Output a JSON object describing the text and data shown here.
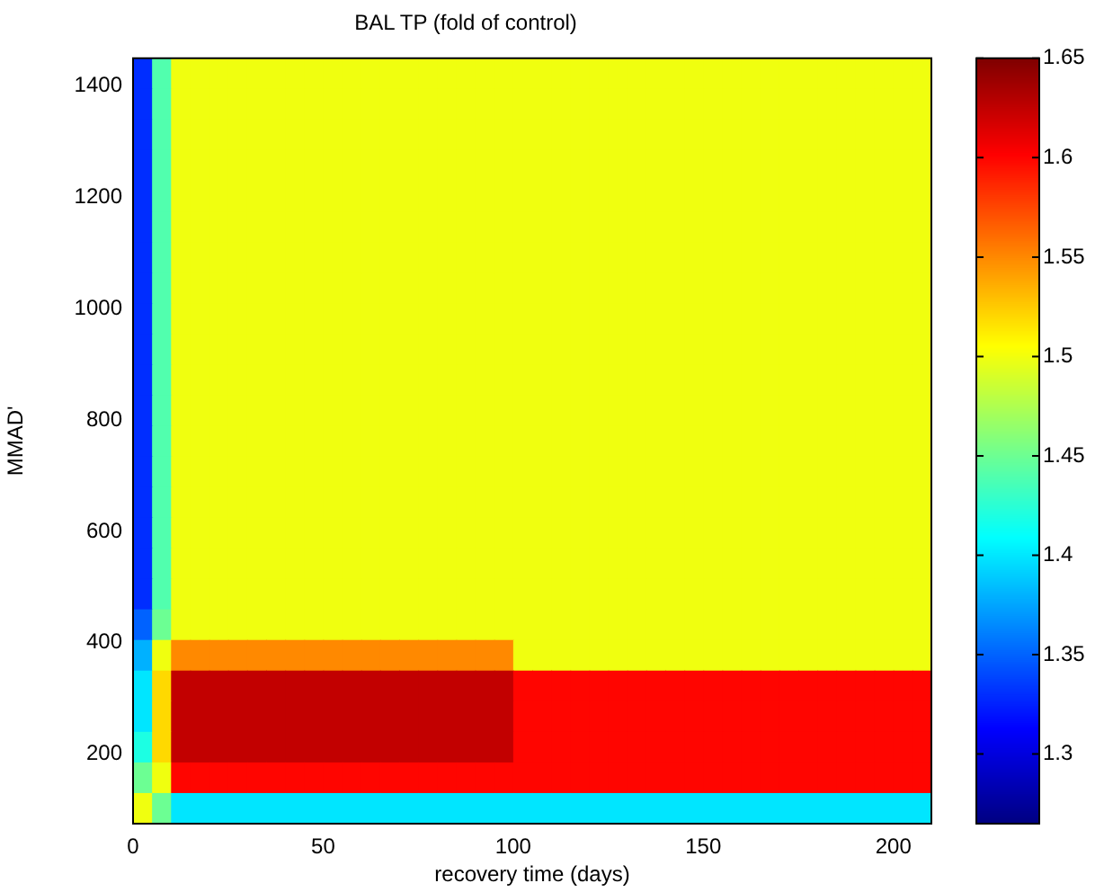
{
  "chart_data": {
    "type": "heatmap",
    "title": "BAL TP (fold of control)",
    "xlabel": "recovery time (days)",
    "ylabel": "MMAD'",
    "x": [
      2.5,
      7.5,
      12.5,
      17.5,
      22.5,
      27.5,
      32.5,
      37.5,
      42.5,
      47.5,
      52.5,
      57.5,
      62.5,
      67.5,
      72.5,
      77.5,
      82.5,
      87.5,
      92.5,
      97.5,
      102.5,
      107.5,
      112.5,
      117.5,
      122.5,
      127.5,
      132.5,
      137.5,
      142.5,
      147.5,
      152.5,
      157.5,
      162.5,
      167.5,
      172.5,
      177.5,
      182.5,
      187.5,
      192.5,
      197.5,
      202.5,
      207.5
    ],
    "y": [
      1422.5,
      1367.5,
      1312.5,
      1257.5,
      1202.5,
      1147.5,
      1092.5,
      1037.5,
      982.5,
      927.5,
      872.5,
      817.5,
      762.5,
      707.5,
      652.5,
      597.5,
      542.5,
      487.5,
      432.5,
      377.5,
      322.5,
      267.5,
      212.5,
      157.5,
      102.5
    ],
    "cells": [
      [
        1.33,
        1.44,
        1.5,
        1.5,
        1.5,
        1.5,
        1.5,
        1.5,
        1.5,
        1.5,
        1.5,
        1.5,
        1.5,
        1.5,
        1.5,
        1.5,
        1.5,
        1.5,
        1.5,
        1.5,
        1.5,
        1.5,
        1.5,
        1.5,
        1.5,
        1.5,
        1.5,
        1.5,
        1.5,
        1.5,
        1.5,
        1.5,
        1.5,
        1.5,
        1.5,
        1.5,
        1.5,
        1.5,
        1.5,
        1.5,
        1.5,
        1.5
      ],
      [
        1.33,
        1.44,
        1.5,
        1.5,
        1.5,
        1.5,
        1.5,
        1.5,
        1.5,
        1.5,
        1.5,
        1.5,
        1.5,
        1.5,
        1.5,
        1.5,
        1.5,
        1.5,
        1.5,
        1.5,
        1.5,
        1.5,
        1.5,
        1.5,
        1.5,
        1.5,
        1.5,
        1.5,
        1.5,
        1.5,
        1.5,
        1.5,
        1.5,
        1.5,
        1.5,
        1.5,
        1.5,
        1.5,
        1.5,
        1.5,
        1.5,
        1.5
      ],
      [
        1.33,
        1.44,
        1.5,
        1.5,
        1.5,
        1.5,
        1.5,
        1.5,
        1.5,
        1.5,
        1.5,
        1.5,
        1.5,
        1.5,
        1.5,
        1.5,
        1.5,
        1.5,
        1.5,
        1.5,
        1.5,
        1.5,
        1.5,
        1.5,
        1.5,
        1.5,
        1.5,
        1.5,
        1.5,
        1.5,
        1.5,
        1.5,
        1.5,
        1.5,
        1.5,
        1.5,
        1.5,
        1.5,
        1.5,
        1.5,
        1.5,
        1.5
      ],
      [
        1.33,
        1.44,
        1.5,
        1.5,
        1.5,
        1.5,
        1.5,
        1.5,
        1.5,
        1.5,
        1.5,
        1.5,
        1.5,
        1.5,
        1.5,
        1.5,
        1.5,
        1.5,
        1.5,
        1.5,
        1.5,
        1.5,
        1.5,
        1.5,
        1.5,
        1.5,
        1.5,
        1.5,
        1.5,
        1.5,
        1.5,
        1.5,
        1.5,
        1.5,
        1.5,
        1.5,
        1.5,
        1.5,
        1.5,
        1.5,
        1.5,
        1.5
      ],
      [
        1.33,
        1.44,
        1.5,
        1.5,
        1.5,
        1.5,
        1.5,
        1.5,
        1.5,
        1.5,
        1.5,
        1.5,
        1.5,
        1.5,
        1.5,
        1.5,
        1.5,
        1.5,
        1.5,
        1.5,
        1.5,
        1.5,
        1.5,
        1.5,
        1.5,
        1.5,
        1.5,
        1.5,
        1.5,
        1.5,
        1.5,
        1.5,
        1.5,
        1.5,
        1.5,
        1.5,
        1.5,
        1.5,
        1.5,
        1.5,
        1.5,
        1.5
      ],
      [
        1.33,
        1.44,
        1.5,
        1.5,
        1.5,
        1.5,
        1.5,
        1.5,
        1.5,
        1.5,
        1.5,
        1.5,
        1.5,
        1.5,
        1.5,
        1.5,
        1.5,
        1.5,
        1.5,
        1.5,
        1.5,
        1.5,
        1.5,
        1.5,
        1.5,
        1.5,
        1.5,
        1.5,
        1.5,
        1.5,
        1.5,
        1.5,
        1.5,
        1.5,
        1.5,
        1.5,
        1.5,
        1.5,
        1.5,
        1.5,
        1.5,
        1.5
      ],
      [
        1.33,
        1.44,
        1.5,
        1.5,
        1.5,
        1.5,
        1.5,
        1.5,
        1.5,
        1.5,
        1.5,
        1.5,
        1.5,
        1.5,
        1.5,
        1.5,
        1.5,
        1.5,
        1.5,
        1.5,
        1.5,
        1.5,
        1.5,
        1.5,
        1.5,
        1.5,
        1.5,
        1.5,
        1.5,
        1.5,
        1.5,
        1.5,
        1.5,
        1.5,
        1.5,
        1.5,
        1.5,
        1.5,
        1.5,
        1.5,
        1.5,
        1.5
      ],
      [
        1.33,
        1.44,
        1.5,
        1.5,
        1.5,
        1.5,
        1.5,
        1.5,
        1.5,
        1.5,
        1.5,
        1.5,
        1.5,
        1.5,
        1.5,
        1.5,
        1.5,
        1.5,
        1.5,
        1.5,
        1.5,
        1.5,
        1.5,
        1.5,
        1.5,
        1.5,
        1.5,
        1.5,
        1.5,
        1.5,
        1.5,
        1.5,
        1.5,
        1.5,
        1.5,
        1.5,
        1.5,
        1.5,
        1.5,
        1.5,
        1.5,
        1.5
      ],
      [
        1.33,
        1.44,
        1.5,
        1.5,
        1.5,
        1.5,
        1.5,
        1.5,
        1.5,
        1.5,
        1.5,
        1.5,
        1.5,
        1.5,
        1.5,
        1.5,
        1.5,
        1.5,
        1.5,
        1.5,
        1.5,
        1.5,
        1.5,
        1.5,
        1.5,
        1.5,
        1.5,
        1.5,
        1.5,
        1.5,
        1.5,
        1.5,
        1.5,
        1.5,
        1.5,
        1.5,
        1.5,
        1.5,
        1.5,
        1.5,
        1.5,
        1.5
      ],
      [
        1.33,
        1.44,
        1.5,
        1.5,
        1.5,
        1.5,
        1.5,
        1.5,
        1.5,
        1.5,
        1.5,
        1.5,
        1.5,
        1.5,
        1.5,
        1.5,
        1.5,
        1.5,
        1.5,
        1.5,
        1.5,
        1.5,
        1.5,
        1.5,
        1.5,
        1.5,
        1.5,
        1.5,
        1.5,
        1.5,
        1.5,
        1.5,
        1.5,
        1.5,
        1.5,
        1.5,
        1.5,
        1.5,
        1.5,
        1.5,
        1.5,
        1.5
      ],
      [
        1.33,
        1.44,
        1.5,
        1.5,
        1.5,
        1.5,
        1.5,
        1.5,
        1.5,
        1.5,
        1.5,
        1.5,
        1.5,
        1.5,
        1.5,
        1.5,
        1.5,
        1.5,
        1.5,
        1.5,
        1.5,
        1.5,
        1.5,
        1.5,
        1.5,
        1.5,
        1.5,
        1.5,
        1.5,
        1.5,
        1.5,
        1.5,
        1.5,
        1.5,
        1.5,
        1.5,
        1.5,
        1.5,
        1.5,
        1.5,
        1.5,
        1.5
      ],
      [
        1.33,
        1.44,
        1.5,
        1.5,
        1.5,
        1.5,
        1.5,
        1.5,
        1.5,
        1.5,
        1.5,
        1.5,
        1.5,
        1.5,
        1.5,
        1.5,
        1.5,
        1.5,
        1.5,
        1.5,
        1.5,
        1.5,
        1.5,
        1.5,
        1.5,
        1.5,
        1.5,
        1.5,
        1.5,
        1.5,
        1.5,
        1.5,
        1.5,
        1.5,
        1.5,
        1.5,
        1.5,
        1.5,
        1.5,
        1.5,
        1.5,
        1.5
      ],
      [
        1.33,
        1.44,
        1.5,
        1.5,
        1.5,
        1.5,
        1.5,
        1.5,
        1.5,
        1.5,
        1.5,
        1.5,
        1.5,
        1.5,
        1.5,
        1.5,
        1.5,
        1.5,
        1.5,
        1.5,
        1.5,
        1.5,
        1.5,
        1.5,
        1.5,
        1.5,
        1.5,
        1.5,
        1.5,
        1.5,
        1.5,
        1.5,
        1.5,
        1.5,
        1.5,
        1.5,
        1.5,
        1.5,
        1.5,
        1.5,
        1.5,
        1.5
      ],
      [
        1.33,
        1.44,
        1.5,
        1.5,
        1.5,
        1.5,
        1.5,
        1.5,
        1.5,
        1.5,
        1.5,
        1.5,
        1.5,
        1.5,
        1.5,
        1.5,
        1.5,
        1.5,
        1.5,
        1.5,
        1.5,
        1.5,
        1.5,
        1.5,
        1.5,
        1.5,
        1.5,
        1.5,
        1.5,
        1.5,
        1.5,
        1.5,
        1.5,
        1.5,
        1.5,
        1.5,
        1.5,
        1.5,
        1.5,
        1.5,
        1.5,
        1.5
      ],
      [
        1.33,
        1.44,
        1.5,
        1.5,
        1.5,
        1.5,
        1.5,
        1.5,
        1.5,
        1.5,
        1.5,
        1.5,
        1.5,
        1.5,
        1.5,
        1.5,
        1.5,
        1.5,
        1.5,
        1.5,
        1.5,
        1.5,
        1.5,
        1.5,
        1.5,
        1.5,
        1.5,
        1.5,
        1.5,
        1.5,
        1.5,
        1.5,
        1.5,
        1.5,
        1.5,
        1.5,
        1.5,
        1.5,
        1.5,
        1.5,
        1.5,
        1.5
      ],
      [
        1.33,
        1.44,
        1.5,
        1.5,
        1.5,
        1.5,
        1.5,
        1.5,
        1.5,
        1.5,
        1.5,
        1.5,
        1.5,
        1.5,
        1.5,
        1.5,
        1.5,
        1.5,
        1.5,
        1.5,
        1.5,
        1.5,
        1.5,
        1.5,
        1.5,
        1.5,
        1.5,
        1.5,
        1.5,
        1.5,
        1.5,
        1.5,
        1.5,
        1.5,
        1.5,
        1.5,
        1.5,
        1.5,
        1.5,
        1.5,
        1.5,
        1.5
      ],
      [
        1.33,
        1.44,
        1.5,
        1.5,
        1.5,
        1.5,
        1.5,
        1.5,
        1.5,
        1.5,
        1.5,
        1.5,
        1.5,
        1.5,
        1.5,
        1.5,
        1.5,
        1.5,
        1.5,
        1.5,
        1.5,
        1.5,
        1.5,
        1.5,
        1.5,
        1.5,
        1.5,
        1.5,
        1.5,
        1.5,
        1.5,
        1.5,
        1.5,
        1.5,
        1.5,
        1.5,
        1.5,
        1.5,
        1.5,
        1.5,
        1.5,
        1.5
      ],
      [
        1.33,
        1.44,
        1.5,
        1.5,
        1.5,
        1.5,
        1.5,
        1.5,
        1.5,
        1.5,
        1.5,
        1.5,
        1.5,
        1.5,
        1.5,
        1.5,
        1.5,
        1.5,
        1.5,
        1.5,
        1.5,
        1.5,
        1.5,
        1.5,
        1.5,
        1.5,
        1.5,
        1.5,
        1.5,
        1.5,
        1.5,
        1.5,
        1.5,
        1.5,
        1.5,
        1.5,
        1.5,
        1.5,
        1.5,
        1.5,
        1.5,
        1.5
      ],
      [
        1.35,
        1.45,
        1.5,
        1.5,
        1.5,
        1.5,
        1.5,
        1.5,
        1.5,
        1.5,
        1.5,
        1.5,
        1.5,
        1.5,
        1.5,
        1.5,
        1.5,
        1.5,
        1.5,
        1.5,
        1.5,
        1.5,
        1.5,
        1.5,
        1.5,
        1.5,
        1.5,
        1.5,
        1.5,
        1.5,
        1.5,
        1.5,
        1.5,
        1.5,
        1.5,
        1.5,
        1.5,
        1.5,
        1.5,
        1.5,
        1.5,
        1.5
      ],
      [
        1.38,
        1.5,
        1.55,
        1.55,
        1.55,
        1.55,
        1.55,
        1.55,
        1.55,
        1.55,
        1.55,
        1.55,
        1.55,
        1.55,
        1.55,
        1.55,
        1.55,
        1.55,
        1.55,
        1.55,
        1.5,
        1.5,
        1.5,
        1.5,
        1.5,
        1.5,
        1.5,
        1.5,
        1.5,
        1.5,
        1.5,
        1.5,
        1.5,
        1.5,
        1.5,
        1.5,
        1.5,
        1.5,
        1.5,
        1.5,
        1.5,
        1.5
      ],
      [
        1.4,
        1.52,
        1.625,
        1.625,
        1.625,
        1.625,
        1.625,
        1.625,
        1.625,
        1.625,
        1.625,
        1.625,
        1.625,
        1.625,
        1.625,
        1.625,
        1.625,
        1.625,
        1.625,
        1.625,
        1.6,
        1.6,
        1.6,
        1.6,
        1.6,
        1.6,
        1.6,
        1.6,
        1.6,
        1.6,
        1.6,
        1.6,
        1.6,
        1.6,
        1.6,
        1.6,
        1.6,
        1.6,
        1.6,
        1.6,
        1.6,
        1.6
      ],
      [
        1.4,
        1.52,
        1.625,
        1.625,
        1.625,
        1.625,
        1.625,
        1.625,
        1.625,
        1.625,
        1.625,
        1.625,
        1.625,
        1.625,
        1.625,
        1.625,
        1.625,
        1.625,
        1.625,
        1.625,
        1.6,
        1.6,
        1.6,
        1.6,
        1.6,
        1.6,
        1.6,
        1.6,
        1.6,
        1.6,
        1.6,
        1.6,
        1.6,
        1.6,
        1.6,
        1.6,
        1.6,
        1.6,
        1.6,
        1.6,
        1.6,
        1.6
      ],
      [
        1.42,
        1.52,
        1.625,
        1.625,
        1.625,
        1.625,
        1.625,
        1.625,
        1.625,
        1.625,
        1.625,
        1.625,
        1.625,
        1.625,
        1.625,
        1.625,
        1.625,
        1.625,
        1.625,
        1.625,
        1.6,
        1.6,
        1.6,
        1.6,
        1.6,
        1.6,
        1.6,
        1.6,
        1.6,
        1.6,
        1.6,
        1.6,
        1.6,
        1.6,
        1.6,
        1.6,
        1.6,
        1.6,
        1.6,
        1.6,
        1.6,
        1.6
      ],
      [
        1.45,
        1.5,
        1.6,
        1.6,
        1.6,
        1.6,
        1.6,
        1.6,
        1.6,
        1.6,
        1.6,
        1.6,
        1.6,
        1.6,
        1.6,
        1.6,
        1.6,
        1.6,
        1.6,
        1.6,
        1.6,
        1.6,
        1.6,
        1.6,
        1.6,
        1.6,
        1.6,
        1.6,
        1.6,
        1.6,
        1.6,
        1.6,
        1.6,
        1.6,
        1.6,
        1.6,
        1.6,
        1.6,
        1.6,
        1.6,
        1.6,
        1.6
      ],
      [
        1.5,
        1.45,
        1.4,
        1.4,
        1.4,
        1.4,
        1.4,
        1.4,
        1.4,
        1.4,
        1.4,
        1.4,
        1.4,
        1.4,
        1.4,
        1.4,
        1.4,
        1.4,
        1.4,
        1.4,
        1.4,
        1.4,
        1.4,
        1.4,
        1.4,
        1.4,
        1.4,
        1.4,
        1.4,
        1.4,
        1.4,
        1.4,
        1.4,
        1.4,
        1.4,
        1.4,
        1.4,
        1.4,
        1.4,
        1.4,
        1.4,
        1.4
      ]
    ],
    "xlim": [
      0,
      210
    ],
    "xticks": [
      0,
      50,
      100,
      150,
      200
    ],
    "ylim": [
      75,
      1450
    ],
    "yticks": [
      200,
      400,
      600,
      800,
      1000,
      1200,
      1400
    ],
    "clim": [
      1.265,
      1.65
    ],
    "cticks": [
      1.3,
      1.35,
      1.4,
      1.45,
      1.5,
      1.55,
      1.6,
      1.65
    ]
  }
}
